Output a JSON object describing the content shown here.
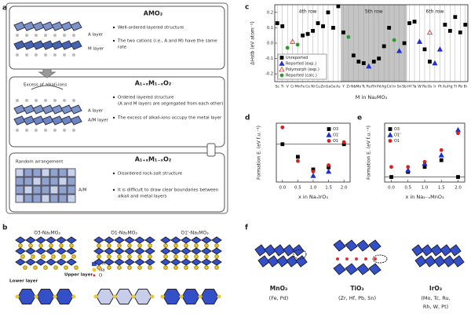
{
  "panel_labels": [
    "a",
    "b",
    "c",
    "d",
    "e",
    "f"
  ],
  "panel_a": {
    "box1": {
      "title": "AMO₂",
      "labels": [
        "A layer",
        "M layer"
      ],
      "bullets": [
        [
          "Well-ordered layered structure"
        ],
        [
          "The two cations (i.e., A and M) have the same",
          "rate"
        ]
      ]
    },
    "box2": {
      "title": "A₁₊ₓM₁₋ₓO₂",
      "note": "Excess of alkali-ions",
      "labels": [
        "A layer",
        "A/M layer"
      ],
      "bullets": [
        [
          "Ordered layered structure",
          "(A and M layers are segregated from each other)"
        ],
        [
          "The excess of alkali-ions occupy the metal layer"
        ]
      ]
    },
    "box3": {
      "title": "A₁₊ₓM₁₋ₓO₂",
      "note": "Random arrangement",
      "labels": [
        "A/M"
      ],
      "bullets": [
        [
          "Disordered rock-salt structure"
        ],
        [
          "It is difficult to draw clear boundaries between",
          "alkali and metal layers"
        ]
      ]
    }
  },
  "panel_b": {
    "structures": [
      "O3-Na₂MO₃",
      "O1-Na₂MO₃",
      "O1'-Na₂MO₃"
    ],
    "legend": [
      "TM",
      "Na",
      "O"
    ],
    "labels": [
      "Lower layer",
      "Upper layer"
    ]
  },
  "panel_f": {
    "structures": [
      {
        "name": "MnO₃",
        "elements": [
          "(Fe, Pd)"
        ]
      },
      {
        "name": "TiO₃",
        "elements": [
          "(Zr, Hf, Pb, Sn)"
        ]
      },
      {
        "name": "IrO₃",
        "elements": [
          "(Mo, Tc, Ru,",
          "Rh, W, Pt)"
        ]
      }
    ]
  },
  "chart_data": [
    {
      "type": "scatter",
      "xlabel": "M in Na₂MO₃",
      "ylabel": "ΔHstb (eV atom⁻¹)",
      "annotations": [
        "4th row",
        "5th row",
        "6th row"
      ],
      "categories": [
        "Sc",
        "Ti",
        "V",
        "Cr",
        "Mn",
        "Fe",
        "Co",
        "Ni",
        "Cu",
        "Zn",
        "Ga",
        "Ge",
        "As",
        "Y",
        "Zr",
        "Nb",
        "Mo",
        "Tc",
        "Ru",
        "Rh",
        "Pd",
        "Ag",
        "Cd",
        "In",
        "Sn",
        "Sb",
        "Hf",
        "Ta",
        "W",
        "Re",
        "Os",
        "Ir",
        "Pt",
        "Au",
        "Hg",
        "Tl",
        "Pb",
        "Bi"
      ],
      "ylim": [
        -0.25,
        0.25
      ],
      "yticks": [
        -0.2,
        -0.1,
        {
          "value": 0,
          "label": "0.0"
        },
        0.1,
        0.2
      ],
      "grid": true,
      "legend": "lower left",
      "series": [
        {
          "name": "Unreported",
          "color": "#000000",
          "marker": "square",
          "values": [
            0.13,
            0.11,
            null,
            null,
            null,
            0.05,
            0.06,
            0.08,
            0.13,
            0.11,
            0.2,
            0.1,
            0.24,
            0.07,
            null,
            -0.08,
            -0.12,
            -0.13,
            null,
            -0.12,
            -0.1,
            -0.02,
            0.1,
            null,
            null,
            0,
            0.13,
            0.14,
            null,
            -0.04,
            -0.12,
            null,
            null,
            0.12,
            0.08,
            0.17,
            0.07,
            0.12
          ]
        },
        {
          "name": "Reported (exp.)",
          "color": "#1f2fd6",
          "marker": "triangle",
          "values": [
            null,
            null,
            null,
            null,
            null,
            null,
            null,
            null,
            null,
            null,
            null,
            null,
            null,
            null,
            null,
            null,
            null,
            null,
            -0.15,
            null,
            null,
            null,
            null,
            null,
            -0.05,
            null,
            null,
            null,
            0.01,
            null,
            null,
            -0.13,
            -0.04,
            null,
            null,
            null,
            null,
            null
          ]
        },
        {
          "name": "Polymorph (exp.)",
          "color": "#e03030",
          "marker": "triangle-open",
          "values": [
            null,
            null,
            null,
            0.01,
            null,
            null,
            null,
            null,
            null,
            null,
            null,
            null,
            null,
            null,
            null,
            null,
            null,
            null,
            null,
            null,
            null,
            null,
            null,
            null,
            null,
            null,
            null,
            null,
            null,
            null,
            0.07,
            null,
            null,
            null,
            null,
            null,
            null,
            null
          ]
        },
        {
          "name": "Reported (calc.)",
          "color": "#2e9a2e",
          "marker": "circle",
          "values": [
            null,
            null,
            -0.03,
            null,
            -0.01,
            null,
            null,
            null,
            null,
            null,
            null,
            null,
            null,
            null,
            0.04,
            null,
            null,
            null,
            null,
            null,
            null,
            null,
            null,
            0.02,
            null,
            null,
            null,
            null,
            null,
            null,
            null,
            null,
            null,
            null,
            null,
            null,
            null,
            null
          ]
        }
      ]
    },
    {
      "type": "scatter",
      "xlabel": "x in NaₓIrO₃",
      "ylabel": "Formation E. (eV f.u.⁻¹)",
      "x": [
        0,
        0.5,
        1,
        1.5,
        2
      ],
      "xlim": [
        -0.2,
        2.2
      ],
      "xticks": [
        {
          "value": 0,
          "label": "0.0"
        },
        0.5,
        {
          "value": 1,
          "label": "1.0"
        },
        1.5,
        {
          "value": 2,
          "label": "2.0"
        }
      ],
      "ylim": [
        -0.9,
        0.5
      ],
      "zero_line": true,
      "legend": "upper right",
      "series": [
        {
          "name": "O3",
          "color": "#000000",
          "marker": "square",
          "values": [
            0,
            -0.3,
            -0.6,
            -0.55,
            0
          ]
        },
        {
          "name": "O1'",
          "color": "#1f2fd6",
          "marker": "triangle",
          "values": [
            null,
            null,
            -0.75,
            -0.65,
            null
          ]
        },
        {
          "name": "O1",
          "color": "#d62020",
          "marker": "circle",
          "values": [
            0.4,
            -0.4,
            -0.65,
            -0.5,
            0.05
          ]
        }
      ]
    },
    {
      "type": "scatter",
      "xlabel": "x in Na₂₋ₓMnO₃",
      "ylabel": "Formation E. (eV f.u.⁻¹)",
      "x": [
        0,
        0.5,
        1,
        1.5,
        2
      ],
      "xlim": [
        -0.2,
        2.2
      ],
      "xticks": [
        {
          "value": 0,
          "label": "0.0"
        },
        0.5,
        {
          "value": 1,
          "label": "1.0"
        },
        1.5,
        {
          "value": 2,
          "label": "2.0"
        }
      ],
      "ylim": [
        -0.15,
        1.6
      ],
      "zero_line": true,
      "legend": "upper left",
      "series": [
        {
          "name": "O3",
          "color": "#000000",
          "marker": "square",
          "values": [
            0,
            0.15,
            0.3,
            0.5,
            0
          ]
        },
        {
          "name": "O1'",
          "color": "#1f2fd6",
          "marker": "triangle",
          "values": [
            null,
            0.2,
            0.4,
            0.65,
            1.4
          ]
        },
        {
          "name": "O1",
          "color": "#d62020",
          "marker": "circle",
          "values": [
            0.3,
            0.3,
            0.45,
            0.8,
            1.3
          ]
        }
      ]
    }
  ]
}
